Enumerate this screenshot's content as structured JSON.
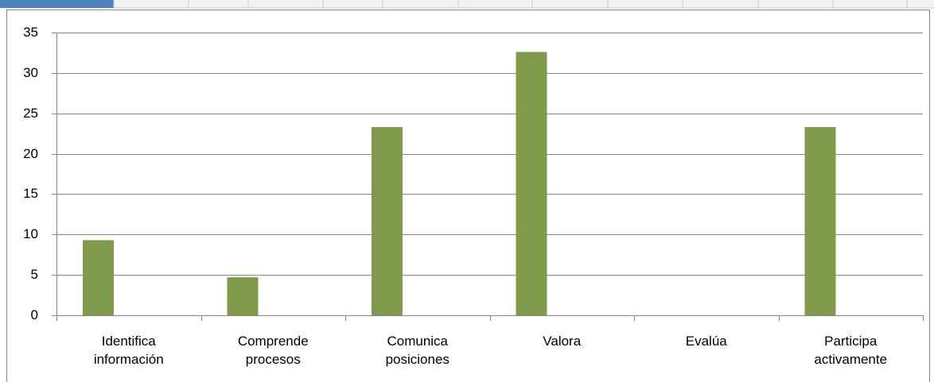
{
  "chart_data": {
    "type": "bar",
    "categories": [
      "Identifica información",
      "Comprende procesos",
      "Comunica posiciones",
      "Valora",
      "Evalúa",
      "Participa activamente"
    ],
    "values": [
      9.3,
      4.7,
      23.3,
      32.6,
      0,
      23.3
    ],
    "color": "#7f9a48",
    "ylim": [
      0,
      35
    ],
    "yticks": [
      0,
      5,
      10,
      15,
      20,
      25,
      30,
      35
    ],
    "grid": true
  }
}
